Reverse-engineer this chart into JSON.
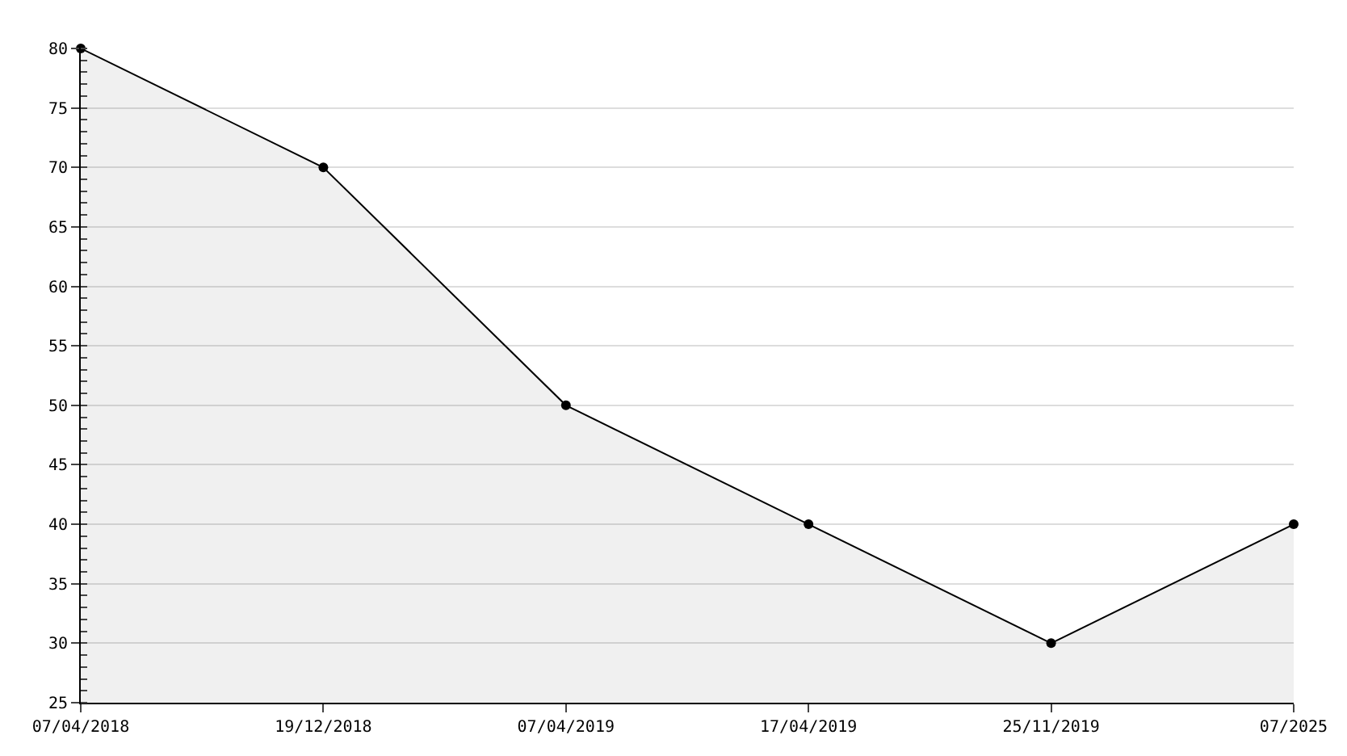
{
  "chart_data": {
    "type": "area",
    "categories": [
      "07/04/2018",
      "19/12/2018",
      "07/04/2019",
      "17/04/2019",
      "25/11/2019",
      "07/2025"
    ],
    "series": [
      {
        "color": "#000000",
        "values": [
          80,
          70,
          50,
          40,
          30,
          40
        ]
      }
    ],
    "ylim": [
      25,
      80
    ],
    "yticks": [
      25,
      30,
      35,
      40,
      45,
      50,
      55,
      60,
      65,
      70,
      75,
      80
    ],
    "grid": "y",
    "marker": "circle",
    "line_style": "solid",
    "legend": false
  }
}
